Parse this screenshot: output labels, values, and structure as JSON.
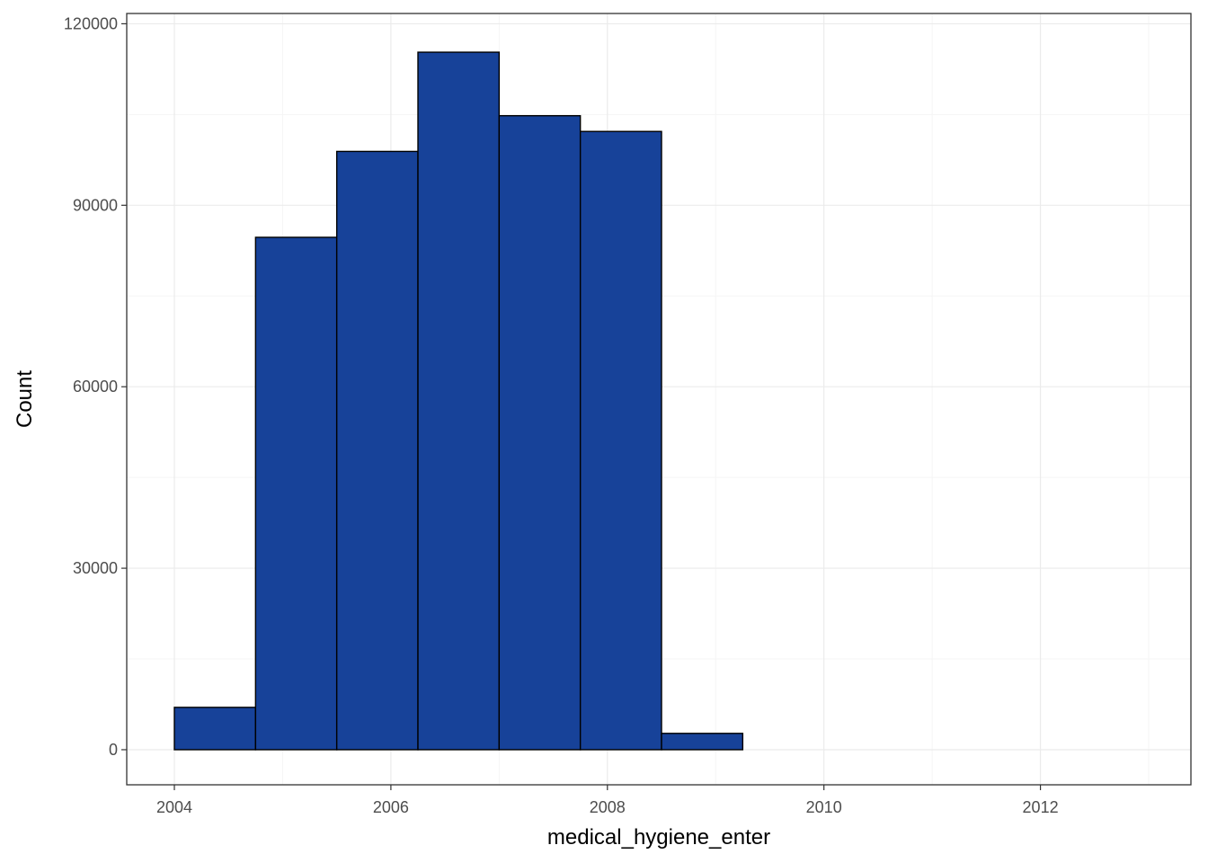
{
  "chart_data": {
    "type": "bar",
    "subtype": "histogram",
    "title": "",
    "xlabel": "medical_hygiene_enter",
    "ylabel": "Count",
    "bins": [
      {
        "x0": 2004.0,
        "x1": 2004.75,
        "count": 7000
      },
      {
        "x0": 2004.75,
        "x1": 2005.5,
        "count": 84700
      },
      {
        "x0": 2005.5,
        "x1": 2006.25,
        "count": 98900
      },
      {
        "x0": 2006.25,
        "x1": 2007.0,
        "count": 115300
      },
      {
        "x0": 2007.0,
        "x1": 2007.75,
        "count": 104800
      },
      {
        "x0": 2007.75,
        "x1": 2008.5,
        "count": 102200
      },
      {
        "x0": 2008.5,
        "x1": 2009.25,
        "count": 2700
      },
      {
        "x0": 2009.25,
        "x1": 2010.0,
        "count": 0
      },
      {
        "x0": 2010.0,
        "x1": 2010.75,
        "count": 0
      },
      {
        "x0": 2010.75,
        "x1": 2011.5,
        "count": 0
      },
      {
        "x0": 2011.5,
        "x1": 2012.25,
        "count": 0
      },
      {
        "x0": 2012.25,
        "x1": 2012.95,
        "count": 0
      }
    ],
    "xlim": [
      2003.56,
      2013.39
    ],
    "ylim": [
      -5800,
      121700
    ],
    "xticks": [
      2004,
      2006,
      2008,
      2010,
      2012
    ],
    "xtick_labels": [
      "2004",
      "2006",
      "2008",
      "2010",
      "2012"
    ],
    "yticks": [
      0,
      30000,
      60000,
      90000,
      120000
    ],
    "ytick_labels": [
      "0",
      "30000",
      "60000",
      "90000",
      "120000"
    ],
    "x_minor_ticks": [
      2005,
      2007,
      2009,
      2011,
      2013
    ],
    "y_minor_ticks": [
      15000,
      45000,
      75000,
      105000
    ],
    "grid": true,
    "legend": "none",
    "colors": {
      "bar_fill": "#174299",
      "bar_edge": "#000000",
      "grid_major": "#ebebeb",
      "grid_minor": "#f5f5f5",
      "panel_border": "#333333"
    }
  }
}
